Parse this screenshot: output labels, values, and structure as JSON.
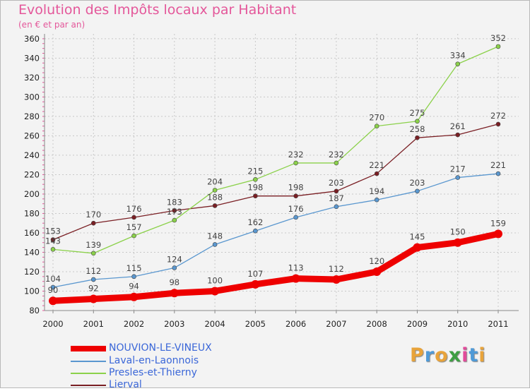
{
  "title": "Evolution des Impôts locaux par Habitant",
  "subtitle": "(en € et par an)",
  "logo": {
    "text": "Proxiti",
    "letter_colors": [
      "#e8a33a",
      "#4f9ad7",
      "#e8a33a",
      "#3e9f43",
      "#e14a9a",
      "#4f9ad7",
      "#e8a33a"
    ]
  },
  "chart_data": {
    "type": "line",
    "x": [
      "2000",
      "2001",
      "2002",
      "2003",
      "2004",
      "2005",
      "2006",
      "2007",
      "2008",
      "2009",
      "2010",
      "2011"
    ],
    "yticks": [
      80,
      100,
      120,
      140,
      160,
      180,
      200,
      220,
      240,
      260,
      280,
      300,
      320,
      340,
      360
    ],
    "ylim": [
      80,
      365
    ],
    "grid": true,
    "legend_position": "bottom-left",
    "series": [
      {
        "name": "Lierval",
        "color": "#7a1f24",
        "values": [
          153,
          170,
          176,
          183,
          188,
          198,
          198,
          203,
          221,
          258,
          261,
          272
        ],
        "labels": [
          "153",
          "170",
          "176",
          "183",
          "188",
          "198",
          "198",
          "203",
          "221",
          "258",
          "261",
          "272"
        ]
      },
      {
        "name": "Presles-et-Thierny",
        "color": "#8bd14a",
        "values": [
          143,
          139,
          157,
          173,
          204,
          215,
          232,
          232,
          270,
          275,
          334,
          352
        ],
        "labels": [
          "143",
          "139",
          "157",
          "173",
          "204",
          "215",
          "232",
          "232",
          "270",
          "275",
          "334",
          "352"
        ]
      },
      {
        "name": "Laval-en-Laonnois",
        "color": "#5a97cf",
        "values": [
          104,
          112,
          115,
          124,
          148,
          162,
          176,
          187,
          194,
          203,
          217,
          221
        ],
        "labels": [
          "104",
          "112",
          "115",
          "124",
          "148",
          "162",
          "176",
          "187",
          "194",
          "203",
          "217",
          "221"
        ]
      },
      {
        "name": "NOUVION-LE-VINEUX",
        "color": "#ee0000",
        "values": [
          90,
          92,
          94,
          98,
          100,
          107,
          113,
          112,
          120,
          145,
          150,
          159
        ],
        "labels": [
          "90",
          "92",
          "94",
          "98",
          "100",
          "107",
          "113",
          "112",
          "120",
          "145",
          "150",
          "159"
        ]
      }
    ],
    "legend": [
      {
        "name": "NOUVION-LE-VINEUX",
        "color": "#ee0000"
      },
      {
        "name": "Laval-en-Laonnois",
        "color": "#5a97cf"
      },
      {
        "name": "Presles-et-Thierny",
        "color": "#8bd14a"
      },
      {
        "name": "Lierval",
        "color": "#7a1f24"
      }
    ]
  }
}
